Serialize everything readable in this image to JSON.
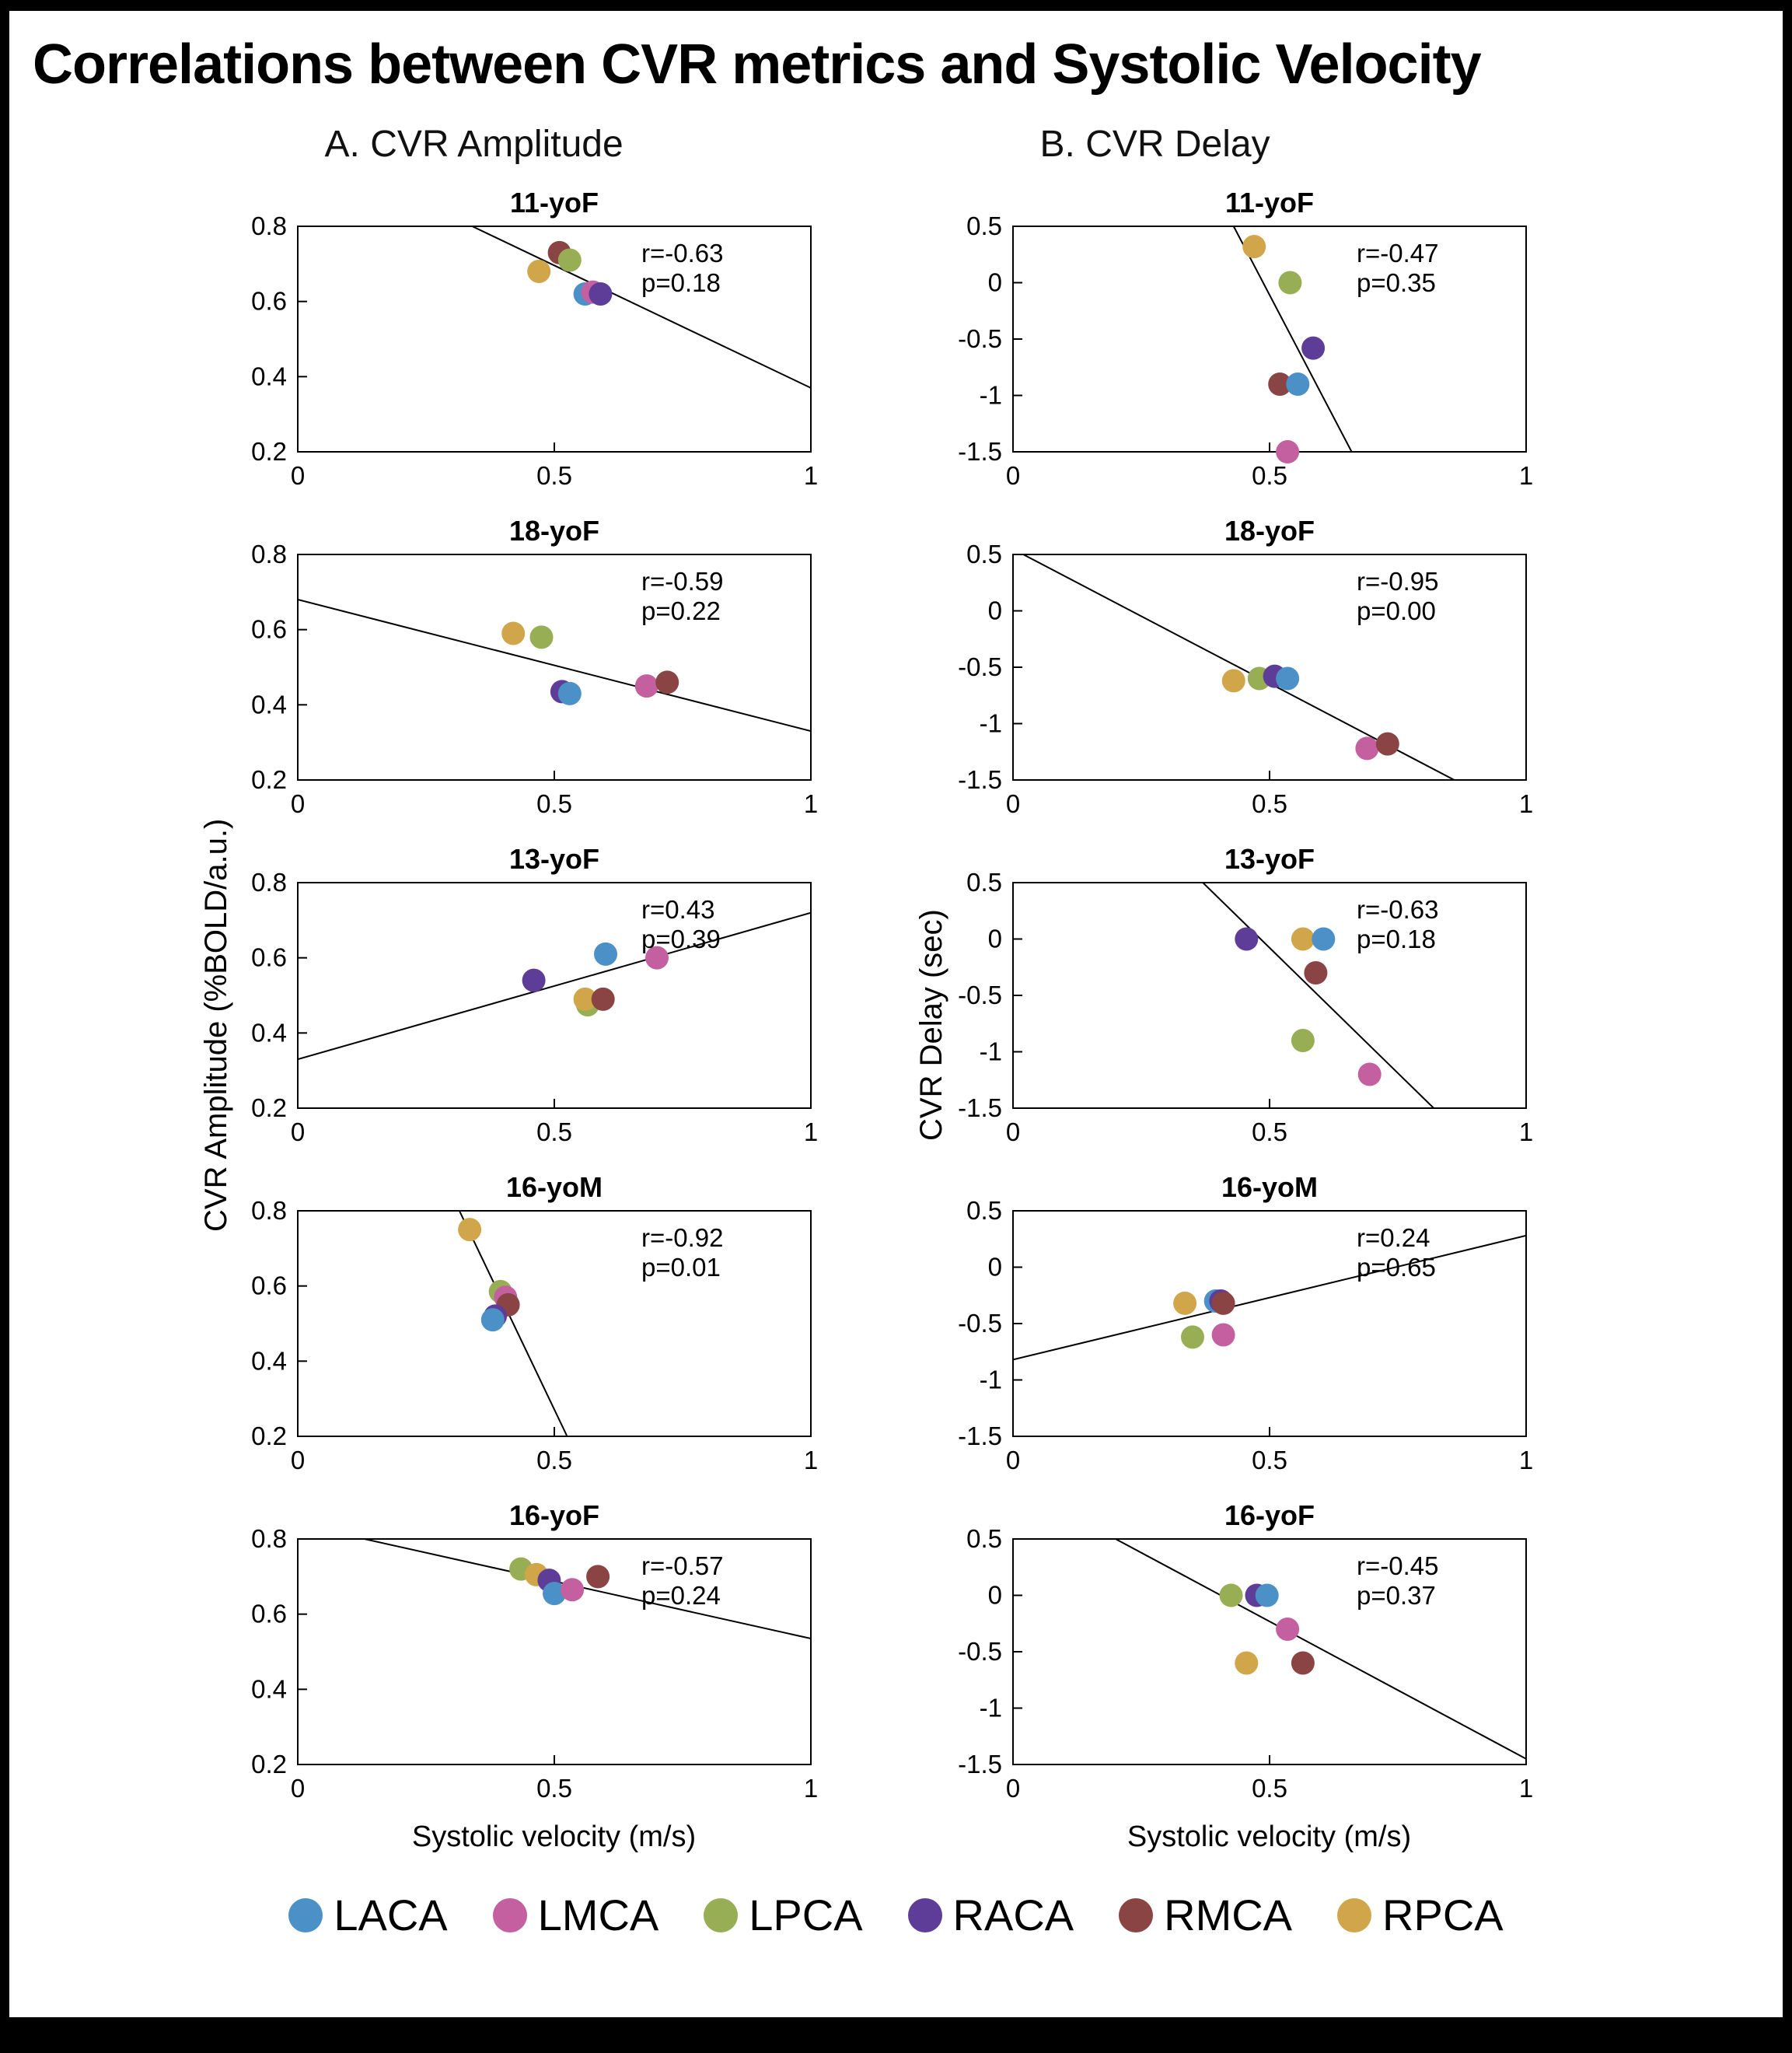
{
  "page": {
    "title": "Correlations between CVR metrics and Systolic Velocity",
    "col_a_header": "A. CVR Amplitude",
    "col_b_header": "B. CVR Delay",
    "ylabel_a": "CVR Amplitude (%BOLD/a.u.)",
    "ylabel_b": "CVR Delay (sec)",
    "xlabel": "Systolic velocity (m/s)"
  },
  "colors": {
    "LACA": "#4C90C8",
    "LMCA": "#C4609F",
    "LPCA": "#98AE55",
    "RACA": "#5E3D99",
    "RMCA": "#8B4444",
    "RPCA": "#D1A64B"
  },
  "legend": [
    {
      "label": "LACA"
    },
    {
      "label": "LMCA"
    },
    {
      "label": "LPCA"
    },
    {
      "label": "RACA"
    },
    {
      "label": "RMCA"
    },
    {
      "label": "RPCA"
    }
  ],
  "chart_data": [
    {
      "type": "scatter",
      "column": "A",
      "title": "11-yoF",
      "r_label": "r=-0.63",
      "p_label": "p=0.18",
      "xlim": [
        0,
        1
      ],
      "ylim": [
        0.2,
        0.8
      ],
      "xticks": [
        "0",
        "0.5",
        "1"
      ],
      "yticks": [
        "0.2",
        "0.4",
        "0.6",
        "0.8"
      ],
      "line": {
        "x1": 0.34,
        "y1": 0.8,
        "x2": 1.0,
        "y2": 0.37
      },
      "points": [
        {
          "series": "RPCA",
          "x": 0.47,
          "y": 0.68
        },
        {
          "series": "RMCA",
          "x": 0.51,
          "y": 0.73
        },
        {
          "series": "LPCA",
          "x": 0.53,
          "y": 0.71
        },
        {
          "series": "LACA",
          "x": 0.56,
          "y": 0.62
        },
        {
          "series": "LMCA",
          "x": 0.575,
          "y": 0.625
        },
        {
          "series": "RACA",
          "x": 0.59,
          "y": 0.62
        }
      ]
    },
    {
      "type": "scatter",
      "column": "B",
      "title": "11-yoF",
      "r_label": "r=-0.47",
      "p_label": "p=0.35",
      "xlim": [
        0,
        1
      ],
      "ylim": [
        -1.5,
        0.5
      ],
      "xticks": [
        "0",
        "0.5",
        "1"
      ],
      "yticks": [
        "-1.5",
        "-1",
        "-0.5",
        "0",
        "0.5"
      ],
      "line": {
        "x1": 0.43,
        "y1": 0.5,
        "x2": 0.66,
        "y2": -1.5
      },
      "points": [
        {
          "series": "RPCA",
          "x": 0.47,
          "y": 0.32
        },
        {
          "series": "LPCA",
          "x": 0.54,
          "y": 0.0
        },
        {
          "series": "RACA",
          "x": 0.585,
          "y": -0.58
        },
        {
          "series": "RMCA",
          "x": 0.52,
          "y": -0.9
        },
        {
          "series": "LACA",
          "x": 0.555,
          "y": -0.9
        },
        {
          "series": "LMCA",
          "x": 0.535,
          "y": -1.5
        }
      ]
    },
    {
      "type": "scatter",
      "column": "A",
      "title": "18-yoF",
      "r_label": "r=-0.59",
      "p_label": "p=0.22",
      "xlim": [
        0,
        1
      ],
      "ylim": [
        0.2,
        0.8
      ],
      "xticks": [
        "0",
        "0.5",
        "1"
      ],
      "yticks": [
        "0.2",
        "0.4",
        "0.6",
        "0.8"
      ],
      "line": {
        "x1": 0.0,
        "y1": 0.68,
        "x2": 1.0,
        "y2": 0.33
      },
      "points": [
        {
          "series": "RPCA",
          "x": 0.42,
          "y": 0.59
        },
        {
          "series": "LPCA",
          "x": 0.475,
          "y": 0.58
        },
        {
          "series": "RACA",
          "x": 0.515,
          "y": 0.435
        },
        {
          "series": "LACA",
          "x": 0.53,
          "y": 0.43
        },
        {
          "series": "LMCA",
          "x": 0.68,
          "y": 0.45
        },
        {
          "series": "RMCA",
          "x": 0.72,
          "y": 0.46
        }
      ]
    },
    {
      "type": "scatter",
      "column": "B",
      "title": "18-yoF",
      "r_label": "r=-0.95",
      "p_label": "p=0.00",
      "xlim": [
        0,
        1
      ],
      "ylim": [
        -1.5,
        0.5
      ],
      "xticks": [
        "0",
        "0.5",
        "1"
      ],
      "yticks": [
        "-1.5",
        "-1",
        "-0.5",
        "0",
        "0.5"
      ],
      "line": {
        "x1": 0.02,
        "y1": 0.5,
        "x2": 0.86,
        "y2": -1.5
      },
      "points": [
        {
          "series": "RPCA",
          "x": 0.43,
          "y": -0.62
        },
        {
          "series": "LPCA",
          "x": 0.48,
          "y": -0.6
        },
        {
          "series": "RACA",
          "x": 0.51,
          "y": -0.58
        },
        {
          "series": "LACA",
          "x": 0.535,
          "y": -0.6
        },
        {
          "series": "LMCA",
          "x": 0.69,
          "y": -1.22
        },
        {
          "series": "RMCA",
          "x": 0.73,
          "y": -1.18
        }
      ]
    },
    {
      "type": "scatter",
      "column": "A",
      "title": "13-yoF",
      "r_label": "r=0.43",
      "p_label": "p=0.39",
      "xlim": [
        0,
        1
      ],
      "ylim": [
        0.2,
        0.8
      ],
      "xticks": [
        "0",
        "0.5",
        "1"
      ],
      "yticks": [
        "0.2",
        "0.4",
        "0.6",
        "0.8"
      ],
      "line": {
        "x1": 0.0,
        "y1": 0.33,
        "x2": 1.0,
        "y2": 0.72
      },
      "points": [
        {
          "series": "RACA",
          "x": 0.46,
          "y": 0.54
        },
        {
          "series": "LACA",
          "x": 0.6,
          "y": 0.61
        },
        {
          "series": "LPCA",
          "x": 0.565,
          "y": 0.475
        },
        {
          "series": "RPCA",
          "x": 0.56,
          "y": 0.49
        },
        {
          "series": "RMCA",
          "x": 0.595,
          "y": 0.49
        },
        {
          "series": "LMCA",
          "x": 0.7,
          "y": 0.6
        }
      ]
    },
    {
      "type": "scatter",
      "column": "B",
      "title": "13-yoF",
      "r_label": "r=-0.63",
      "p_label": "p=0.18",
      "xlim": [
        0,
        1
      ],
      "ylim": [
        -1.5,
        0.5
      ],
      "xticks": [
        "0",
        "0.5",
        "1"
      ],
      "yticks": [
        "-1.5",
        "-1",
        "-0.5",
        "0",
        "0.5"
      ],
      "line": {
        "x1": 0.37,
        "y1": 0.5,
        "x2": 0.82,
        "y2": -1.5
      },
      "points": [
        {
          "series": "RACA",
          "x": 0.455,
          "y": 0.0
        },
        {
          "series": "RPCA",
          "x": 0.565,
          "y": 0.0
        },
        {
          "series": "LACA",
          "x": 0.605,
          "y": 0.0
        },
        {
          "series": "RMCA",
          "x": 0.59,
          "y": -0.3
        },
        {
          "series": "LPCA",
          "x": 0.565,
          "y": -0.9
        },
        {
          "series": "LMCA",
          "x": 0.695,
          "y": -1.2
        }
      ]
    },
    {
      "type": "scatter",
      "column": "A",
      "title": "16-yoM",
      "r_label": "r=-0.92",
      "p_label": "p=0.01",
      "xlim": [
        0,
        1
      ],
      "ylim": [
        0.2,
        0.8
      ],
      "xticks": [
        "0",
        "0.5",
        "1"
      ],
      "yticks": [
        "0.2",
        "0.4",
        "0.6",
        "0.8"
      ],
      "line": {
        "x1": 0.315,
        "y1": 0.8,
        "x2": 0.525,
        "y2": 0.2
      },
      "points": [
        {
          "series": "RPCA",
          "x": 0.335,
          "y": 0.75
        },
        {
          "series": "LPCA",
          "x": 0.395,
          "y": 0.585
        },
        {
          "series": "LMCA",
          "x": 0.405,
          "y": 0.57
        },
        {
          "series": "RMCA",
          "x": 0.41,
          "y": 0.55
        },
        {
          "series": "RACA",
          "x": 0.385,
          "y": 0.52
        },
        {
          "series": "LACA",
          "x": 0.38,
          "y": 0.51
        }
      ]
    },
    {
      "type": "scatter",
      "column": "B",
      "title": "16-yoM",
      "r_label": "r=0.24",
      "p_label": "p=0.65",
      "xlim": [
        0,
        1
      ],
      "ylim": [
        -1.5,
        0.5
      ],
      "xticks": [
        "0",
        "0.5",
        "1"
      ],
      "yticks": [
        "-1.5",
        "-1",
        "-0.5",
        "0",
        "0.5"
      ],
      "line": {
        "x1": 0.0,
        "y1": -0.82,
        "x2": 1.0,
        "y2": 0.28
      },
      "points": [
        {
          "series": "RPCA",
          "x": 0.335,
          "y": -0.32
        },
        {
          "series": "LACA",
          "x": 0.395,
          "y": -0.3
        },
        {
          "series": "RACA",
          "x": 0.405,
          "y": -0.3
        },
        {
          "series": "RMCA",
          "x": 0.41,
          "y": -0.32
        },
        {
          "series": "LPCA",
          "x": 0.35,
          "y": -0.62
        },
        {
          "series": "LMCA",
          "x": 0.41,
          "y": -0.6
        }
      ]
    },
    {
      "type": "scatter",
      "column": "A",
      "title": "16-yoF",
      "r_label": "r=-0.57",
      "p_label": "p=0.24",
      "xlim": [
        0,
        1
      ],
      "ylim": [
        0.2,
        0.8
      ],
      "xticks": [
        "0",
        "0.5",
        "1"
      ],
      "yticks": [
        "0.2",
        "0.4",
        "0.6",
        "0.8"
      ],
      "line": {
        "x1": 0.13,
        "y1": 0.8,
        "x2": 1.0,
        "y2": 0.535
      },
      "points": [
        {
          "series": "LPCA",
          "x": 0.435,
          "y": 0.72
        },
        {
          "series": "RPCA",
          "x": 0.465,
          "y": 0.705
        },
        {
          "series": "RACA",
          "x": 0.49,
          "y": 0.69
        },
        {
          "series": "LACA",
          "x": 0.5,
          "y": 0.655
        },
        {
          "series": "LMCA",
          "x": 0.535,
          "y": 0.665
        },
        {
          "series": "RMCA",
          "x": 0.585,
          "y": 0.7
        }
      ]
    },
    {
      "type": "scatter",
      "column": "B",
      "title": "16-yoF",
      "r_label": "r=-0.45",
      "p_label": "p=0.37",
      "xlim": [
        0,
        1
      ],
      "ylim": [
        -1.5,
        0.5
      ],
      "xticks": [
        "0",
        "0.5",
        "1"
      ],
      "yticks": [
        "-1.5",
        "-1",
        "-0.5",
        "0",
        "0.5"
      ],
      "line": {
        "x1": 0.2,
        "y1": 0.5,
        "x2": 1.0,
        "y2": -1.45
      },
      "points": [
        {
          "series": "LPCA",
          "x": 0.425,
          "y": 0.0
        },
        {
          "series": "RACA",
          "x": 0.475,
          "y": 0.0
        },
        {
          "series": "LACA",
          "x": 0.495,
          "y": 0.0
        },
        {
          "series": "LMCA",
          "x": 0.535,
          "y": -0.3
        },
        {
          "series": "RPCA",
          "x": 0.455,
          "y": -0.6
        },
        {
          "series": "RMCA",
          "x": 0.565,
          "y": -0.6
        }
      ]
    }
  ]
}
